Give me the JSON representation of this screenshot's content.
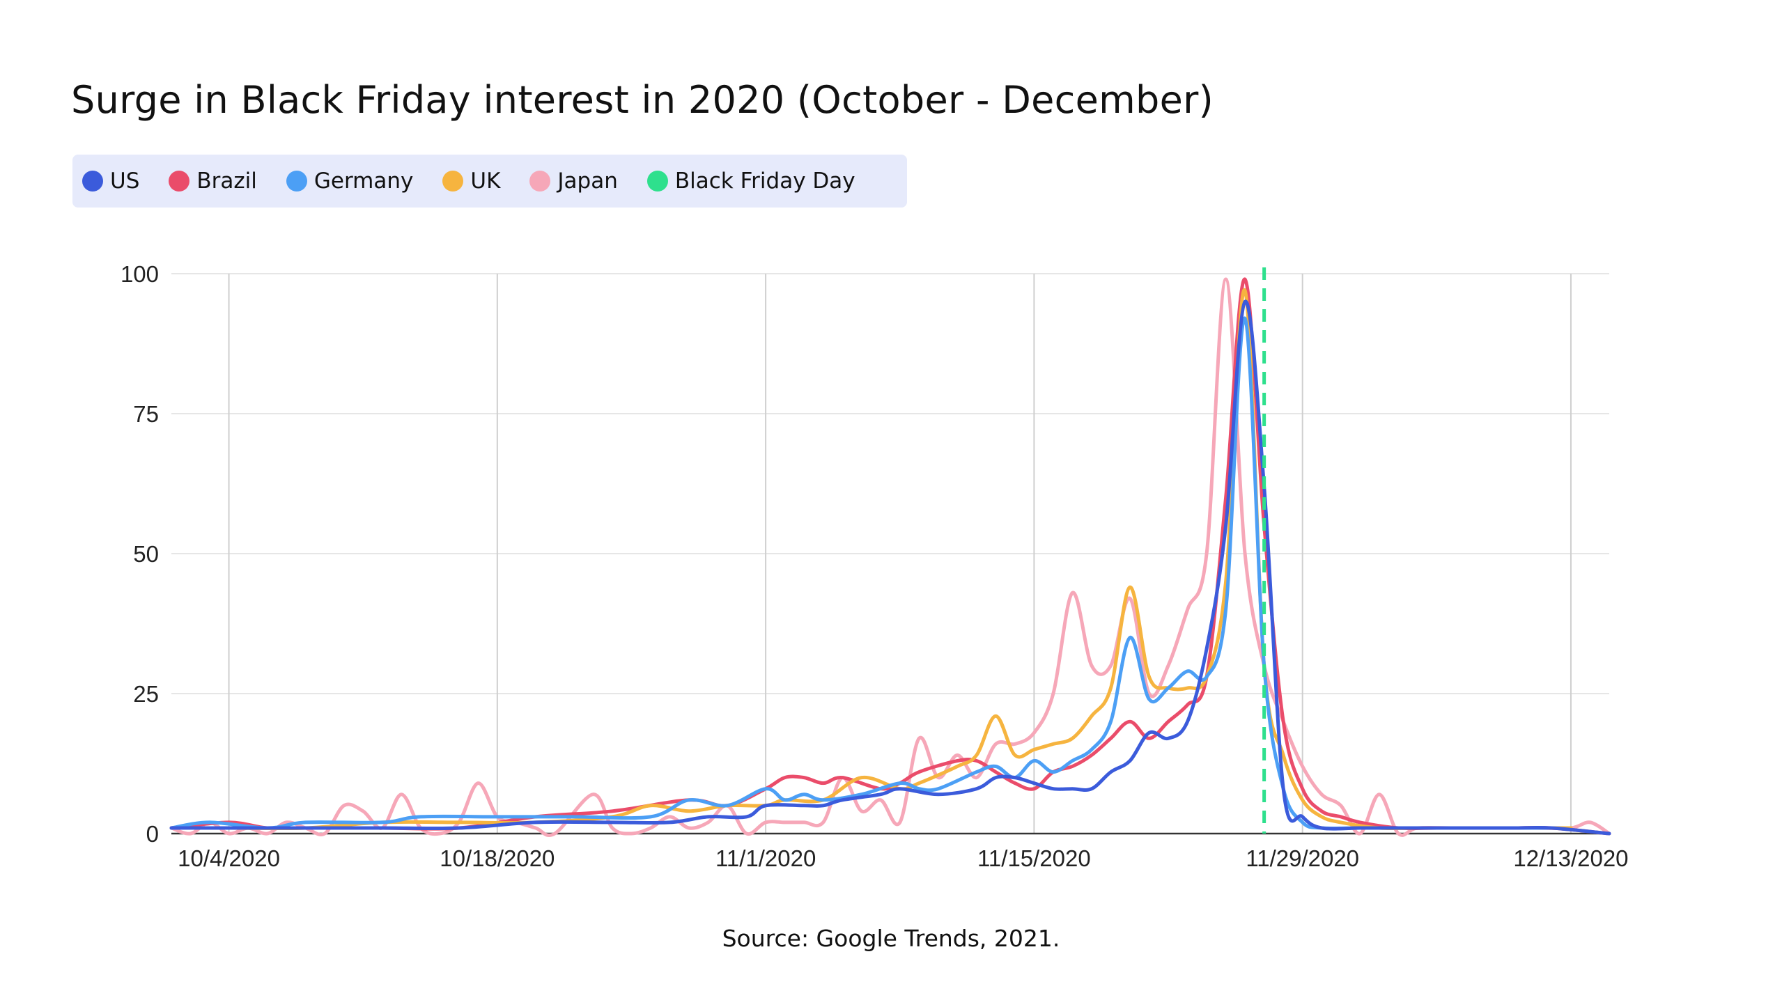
{
  "title": "Surge in Black Friday interest in 2020 (October - December)",
  "source": "Source: Google Trends, 2021.",
  "legend": [
    {
      "name": "US",
      "color": "#3b5bdb"
    },
    {
      "name": "Brazil",
      "color": "#ea4c6a"
    },
    {
      "name": "Germany",
      "color": "#4c9ff5"
    },
    {
      "name": "UK",
      "color": "#f6b43f"
    },
    {
      "name": "Japan",
      "color": "#f6a7b8"
    },
    {
      "name": "Black Friday Day",
      "color": "#2ee08d"
    }
  ],
  "chart_data": {
    "type": "line",
    "ylim": [
      0,
      100
    ],
    "yticks": [
      0,
      25,
      50,
      75,
      100
    ],
    "xlim": [
      "2020-10-01",
      "2020-12-15"
    ],
    "xticks": [
      "10/4/2020",
      "10/18/2020",
      "11/1/2020",
      "11/15/2020",
      "11/29/2020",
      "12/13/2020"
    ],
    "grid": true,
    "legend_position": "top-left",
    "marker_line": {
      "name": "Black Friday Day",
      "x": "2020-11-27",
      "style": "dashed"
    },
    "series": [
      {
        "name": "US",
        "color": "#3b5bdb",
        "points": [
          [
            "2020-10-01",
            1
          ],
          [
            "2020-10-04",
            1
          ],
          [
            "2020-10-08",
            1
          ],
          [
            "2020-10-12",
            1
          ],
          [
            "2020-10-16",
            1
          ],
          [
            "2020-10-20",
            2
          ],
          [
            "2020-10-24",
            2
          ],
          [
            "2020-10-27",
            2
          ],
          [
            "2020-10-29",
            3
          ],
          [
            "2020-10-31",
            3
          ],
          [
            "2020-11-01",
            5
          ],
          [
            "2020-11-03",
            5
          ],
          [
            "2020-11-04",
            5
          ],
          [
            "2020-11-05",
            6
          ],
          [
            "2020-11-07",
            7
          ],
          [
            "2020-11-08",
            8
          ],
          [
            "2020-11-10",
            7
          ],
          [
            "2020-11-12",
            8
          ],
          [
            "2020-11-13",
            10
          ],
          [
            "2020-11-14",
            10
          ],
          [
            "2020-11-15",
            9
          ],
          [
            "2020-11-16",
            8
          ],
          [
            "2020-11-17",
            8
          ],
          [
            "2020-11-18",
            8
          ],
          [
            "2020-11-19",
            11
          ],
          [
            "2020-11-20",
            13
          ],
          [
            "2020-11-21",
            18
          ],
          [
            "2020-11-22",
            17
          ],
          [
            "2020-11-23",
            20
          ],
          [
            "2020-11-24",
            33
          ],
          [
            "2020-11-25",
            55
          ],
          [
            "2020-11-26",
            95
          ],
          [
            "2020-11-27",
            62
          ],
          [
            "2020-11-28",
            8
          ],
          [
            "2020-11-29",
            3
          ],
          [
            "2020-11-30",
            1
          ],
          [
            "2020-12-02",
            1
          ],
          [
            "2020-12-04",
            1
          ],
          [
            "2020-12-06",
            1
          ],
          [
            "2020-12-08",
            1
          ],
          [
            "2020-12-10",
            1
          ],
          [
            "2020-12-12",
            1
          ],
          [
            "2020-12-15",
            0
          ]
        ]
      },
      {
        "name": "Brazil",
        "color": "#ea4c6a",
        "points": [
          [
            "2020-10-01",
            1
          ],
          [
            "2020-10-04",
            2
          ],
          [
            "2020-10-06",
            1
          ],
          [
            "2020-10-08",
            1
          ],
          [
            "2020-10-12",
            1
          ],
          [
            "2020-10-16",
            1
          ],
          [
            "2020-10-20",
            3
          ],
          [
            "2020-10-24",
            4
          ],
          [
            "2020-10-28",
            6
          ],
          [
            "2020-10-30",
            5
          ],
          [
            "2020-11-01",
            8
          ],
          [
            "2020-11-02",
            10
          ],
          [
            "2020-11-03",
            10
          ],
          [
            "2020-11-04",
            9
          ],
          [
            "2020-11-05",
            10
          ],
          [
            "2020-11-07",
            8
          ],
          [
            "2020-11-08",
            9
          ],
          [
            "2020-11-09",
            11
          ],
          [
            "2020-11-11",
            13
          ],
          [
            "2020-11-12",
            13
          ],
          [
            "2020-11-13",
            11
          ],
          [
            "2020-11-14",
            9
          ],
          [
            "2020-11-15",
            8
          ],
          [
            "2020-11-16",
            11
          ],
          [
            "2020-11-17",
            12
          ],
          [
            "2020-11-18",
            14
          ],
          [
            "2020-11-19",
            17
          ],
          [
            "2020-11-20",
            20
          ],
          [
            "2020-11-21",
            17
          ],
          [
            "2020-11-22",
            20
          ],
          [
            "2020-11-23",
            23
          ],
          [
            "2020-11-24",
            28
          ],
          [
            "2020-11-25",
            60
          ],
          [
            "2020-11-26",
            99
          ],
          [
            "2020-11-27",
            55
          ],
          [
            "2020-11-28",
            20
          ],
          [
            "2020-11-29",
            8
          ],
          [
            "2020-11-30",
            4
          ],
          [
            "2020-12-01",
            3
          ],
          [
            "2020-12-02",
            2
          ],
          [
            "2020-12-04",
            1
          ],
          [
            "2020-12-06",
            1
          ],
          [
            "2020-12-08",
            1
          ],
          [
            "2020-12-10",
            1
          ],
          [
            "2020-12-12",
            1
          ],
          [
            "2020-12-15",
            0
          ]
        ]
      },
      {
        "name": "Germany",
        "color": "#4c9ff5",
        "points": [
          [
            "2020-10-01",
            1
          ],
          [
            "2020-10-03",
            2
          ],
          [
            "2020-10-06",
            1
          ],
          [
            "2020-10-08",
            2
          ],
          [
            "2020-10-12",
            2
          ],
          [
            "2020-10-14",
            3
          ],
          [
            "2020-10-18",
            3
          ],
          [
            "2020-10-22",
            3
          ],
          [
            "2020-10-26",
            3
          ],
          [
            "2020-10-28",
            6
          ],
          [
            "2020-10-30",
            5
          ],
          [
            "2020-11-01",
            8
          ],
          [
            "2020-11-02",
            6
          ],
          [
            "2020-11-03",
            7
          ],
          [
            "2020-11-04",
            6
          ],
          [
            "2020-11-06",
            7
          ],
          [
            "2020-11-08",
            9
          ],
          [
            "2020-11-09",
            8
          ],
          [
            "2020-11-10",
            8
          ],
          [
            "2020-11-12",
            11
          ],
          [
            "2020-11-13",
            12
          ],
          [
            "2020-11-14",
            10
          ],
          [
            "2020-11-15",
            13
          ],
          [
            "2020-11-16",
            11
          ],
          [
            "2020-11-17",
            13
          ],
          [
            "2020-11-18",
            15
          ],
          [
            "2020-11-19",
            20
          ],
          [
            "2020-11-20",
            35
          ],
          [
            "2020-11-21",
            24
          ],
          [
            "2020-11-22",
            26
          ],
          [
            "2020-11-23",
            29
          ],
          [
            "2020-11-24",
            28
          ],
          [
            "2020-11-25",
            40
          ],
          [
            "2020-11-26",
            92
          ],
          [
            "2020-11-27",
            30
          ],
          [
            "2020-11-28",
            8
          ],
          [
            "2020-11-29",
            2
          ],
          [
            "2020-11-30",
            1
          ],
          [
            "2020-12-02",
            1
          ],
          [
            "2020-12-04",
            1
          ],
          [
            "2020-12-06",
            1
          ],
          [
            "2020-12-08",
            1
          ],
          [
            "2020-12-10",
            1
          ],
          [
            "2020-12-12",
            1
          ]
        ]
      },
      {
        "name": "UK",
        "color": "#f6b43f",
        "points": [
          [
            "2020-10-01",
            1
          ],
          [
            "2020-10-04",
            1
          ],
          [
            "2020-10-08",
            1
          ],
          [
            "2020-10-12",
            2
          ],
          [
            "2020-10-16",
            2
          ],
          [
            "2020-10-20",
            2
          ],
          [
            "2020-10-24",
            3
          ],
          [
            "2020-10-26",
            5
          ],
          [
            "2020-10-28",
            4
          ],
          [
            "2020-10-30",
            5
          ],
          [
            "2020-11-01",
            5
          ],
          [
            "2020-11-02",
            6
          ],
          [
            "2020-11-04",
            6
          ],
          [
            "2020-11-06",
            10
          ],
          [
            "2020-11-08",
            8
          ],
          [
            "2020-11-09",
            9
          ],
          [
            "2020-11-11",
            12
          ],
          [
            "2020-11-12",
            14
          ],
          [
            "2020-11-13",
            21
          ],
          [
            "2020-11-14",
            14
          ],
          [
            "2020-11-15",
            15
          ],
          [
            "2020-11-16",
            16
          ],
          [
            "2020-11-17",
            17
          ],
          [
            "2020-11-18",
            21
          ],
          [
            "2020-11-19",
            26
          ],
          [
            "2020-11-20",
            44
          ],
          [
            "2020-11-21",
            28
          ],
          [
            "2020-11-22",
            26
          ],
          [
            "2020-11-23",
            26
          ],
          [
            "2020-11-24",
            28
          ],
          [
            "2020-11-25",
            45
          ],
          [
            "2020-11-26",
            97
          ],
          [
            "2020-11-27",
            30
          ],
          [
            "2020-11-28",
            14
          ],
          [
            "2020-11-29",
            6
          ],
          [
            "2020-11-30",
            3
          ],
          [
            "2020-12-01",
            2
          ],
          [
            "2020-12-03",
            1
          ],
          [
            "2020-12-05",
            1
          ],
          [
            "2020-12-08",
            1
          ],
          [
            "2020-12-11",
            1
          ],
          [
            "2020-12-13",
            1
          ]
        ]
      },
      {
        "name": "Japan",
        "color": "#f6a7b8",
        "points": [
          [
            "2020-10-01",
            1
          ],
          [
            "2020-10-02",
            0
          ],
          [
            "2020-10-03",
            2
          ],
          [
            "2020-10-04",
            0
          ],
          [
            "2020-10-05",
            1
          ],
          [
            "2020-10-06",
            0
          ],
          [
            "2020-10-07",
            2
          ],
          [
            "2020-10-08",
            1
          ],
          [
            "2020-10-09",
            0
          ],
          [
            "2020-10-10",
            5
          ],
          [
            "2020-10-11",
            4
          ],
          [
            "2020-10-12",
            1
          ],
          [
            "2020-10-13",
            7
          ],
          [
            "2020-10-14",
            1
          ],
          [
            "2020-10-15",
            0
          ],
          [
            "2020-10-16",
            2
          ],
          [
            "2020-10-17",
            9
          ],
          [
            "2020-10-18",
            3
          ],
          [
            "2020-10-19",
            2
          ],
          [
            "2020-10-20",
            1
          ],
          [
            "2020-10-21",
            0
          ],
          [
            "2020-10-23",
            7
          ],
          [
            "2020-10-24",
            1
          ],
          [
            "2020-10-25",
            0
          ],
          [
            "2020-10-26",
            1
          ],
          [
            "2020-10-27",
            3
          ],
          [
            "2020-10-28",
            1
          ],
          [
            "2020-10-29",
            2
          ],
          [
            "2020-10-30",
            5
          ],
          [
            "2020-10-31",
            0
          ],
          [
            "2020-11-01",
            2
          ],
          [
            "2020-11-02",
            2
          ],
          [
            "2020-11-03",
            2
          ],
          [
            "2020-11-04",
            2
          ],
          [
            "2020-11-05",
            10
          ],
          [
            "2020-11-06",
            4
          ],
          [
            "2020-11-07",
            6
          ],
          [
            "2020-11-08",
            2
          ],
          [
            "2020-11-09",
            17
          ],
          [
            "2020-11-10",
            10
          ],
          [
            "2020-11-11",
            14
          ],
          [
            "2020-11-12",
            10
          ],
          [
            "2020-11-13",
            16
          ],
          [
            "2020-11-14",
            16
          ],
          [
            "2020-11-15",
            18
          ],
          [
            "2020-11-16",
            25
          ],
          [
            "2020-11-17",
            43
          ],
          [
            "2020-11-18",
            30
          ],
          [
            "2020-11-19",
            30
          ],
          [
            "2020-11-20",
            42
          ],
          [
            "2020-11-21",
            25
          ],
          [
            "2020-11-22",
            30
          ],
          [
            "2020-11-23",
            40
          ],
          [
            "2020-11-24",
            50
          ],
          [
            "2020-11-25",
            99
          ],
          [
            "2020-11-26",
            50
          ],
          [
            "2020-11-27",
            30
          ],
          [
            "2020-11-28",
            20
          ],
          [
            "2020-11-29",
            12
          ],
          [
            "2020-11-30",
            7
          ],
          [
            "2020-12-01",
            5
          ],
          [
            "2020-12-02",
            0
          ],
          [
            "2020-12-03",
            7
          ],
          [
            "2020-12-04",
            0
          ],
          [
            "2020-12-05",
            1
          ],
          [
            "2020-12-07",
            1
          ],
          [
            "2020-12-09",
            1
          ],
          [
            "2020-12-11",
            1
          ],
          [
            "2020-12-13",
            1
          ],
          [
            "2020-12-14",
            2
          ],
          [
            "2020-12-15",
            0
          ]
        ]
      }
    ]
  }
}
